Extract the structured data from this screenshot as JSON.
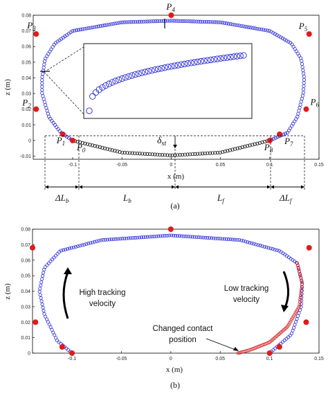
{
  "chart_data": [
    {
      "panel": "a",
      "type": "scatter",
      "caption": "(a)",
      "xlabel": "x (m)",
      "ylabel": "z (m)",
      "xlim": [
        -0.14,
        0.15
      ],
      "ylim": [
        -0.012,
        0.08
      ],
      "xticks": [
        -0.1,
        -0.05,
        0,
        0.05,
        0.1,
        0.15
      ],
      "xtick_labels": [
        "-0.1",
        "-0.05",
        "0",
        "0.05",
        "0.1",
        "0.15"
      ],
      "yticks": [
        -0.01,
        0,
        0.01,
        0.02,
        0.03,
        0.04,
        0.05,
        0.06,
        0.07,
        0.08
      ],
      "ytick_labels": [
        "-0.01",
        "0",
        "0.01",
        "0.02",
        "0.03",
        "0.04",
        "0.05",
        "0.06",
        "0.07",
        "0.08"
      ],
      "grid": false,
      "series": [
        {
          "color": "#2a2ad4",
          "marker": "open-circle",
          "points": [
            [
              -0.1,
              0.0
            ],
            [
              -0.112,
              0.005
            ],
            [
              -0.124,
              0.015
            ],
            [
              -0.131,
              0.03
            ],
            [
              -0.131,
              0.04
            ],
            [
              -0.128,
              0.052
            ],
            [
              -0.118,
              0.062
            ],
            [
              -0.1,
              0.07
            ],
            [
              -0.05,
              0.0755
            ],
            [
              0.0,
              0.0765
            ],
            [
              0.05,
              0.0755
            ],
            [
              0.1,
              0.07
            ],
            [
              0.122,
              0.062
            ],
            [
              0.132,
              0.052
            ],
            [
              0.135,
              0.04
            ],
            [
              0.134,
              0.03
            ],
            [
              0.128,
              0.015
            ],
            [
              0.118,
              0.005
            ],
            [
              0.1,
              0.0
            ]
          ]
        },
        {
          "color": "#111111",
          "marker": "open-circle",
          "points": [
            [
              -0.1,
              0.0
            ],
            [
              -0.05,
              -0.0077
            ],
            [
              0.0,
              -0.0095
            ],
            [
              0.05,
              -0.0077
            ],
            [
              0.1,
              0.0
            ]
          ]
        }
      ],
      "points": [
        {
          "label_main": "P",
          "label_sub": "0",
          "x": -0.1,
          "z": 0.0
        },
        {
          "label_main": "P",
          "label_sub": "1",
          "x": -0.11,
          "z": 0.004
        },
        {
          "label_main": "P",
          "label_sub": "2",
          "x": -0.137,
          "z": 0.02
        },
        {
          "label_main": "P",
          "label_sub": "3",
          "x": -0.137,
          "z": 0.068
        },
        {
          "label_main": "P",
          "label_sub": "4",
          "x": 0.0,
          "z": 0.08
        },
        {
          "label_main": "P",
          "label_sub": "5",
          "x": 0.14,
          "z": 0.068
        },
        {
          "label_main": "P",
          "label_sub": "6",
          "x": 0.137,
          "z": 0.02
        },
        {
          "label_main": "P",
          "label_sub": "7",
          "x": 0.11,
          "z": 0.004
        },
        {
          "label_main": "P",
          "label_sub": "8",
          "x": 0.1,
          "z": 0.0
        }
      ],
      "dimension_labels": [
        {
          "main": "ΔL",
          "sub": "b"
        },
        {
          "main": "L",
          "sub": "b"
        },
        {
          "main": "L",
          "sub": "f"
        },
        {
          "main": "ΔL",
          "sub": "f"
        }
      ],
      "sag_label": {
        "main": "δ",
        "sub": "st"
      }
    },
    {
      "panel": "b",
      "type": "scatter",
      "caption": "(b)",
      "xlabel": "x (m)",
      "ylabel": "z (m)",
      "xlim": [
        -0.14,
        0.15
      ],
      "ylim": [
        0,
        0.08
      ],
      "xticks": [
        -0.1,
        -0.05,
        0,
        0.05,
        0.1,
        0.15
      ],
      "xtick_labels": [
        "-0.1",
        "-0.05",
        "0",
        "0.05",
        "0.1",
        "0.15"
      ],
      "yticks": [
        0,
        0.01,
        0.02,
        0.03,
        0.04,
        0.05,
        0.06,
        0.07,
        0.08
      ],
      "ytick_labels": [
        "0",
        "0.01",
        "0.02",
        "0.03",
        "0.04",
        "0.05",
        "0.06",
        "0.07",
        "0.08"
      ],
      "grid": false,
      "series": [
        {
          "color": "#2a2ad4",
          "marker": "open-circle",
          "points": [
            [
              -0.1,
              0.0
            ],
            [
              -0.115,
              0.008
            ],
            [
              -0.128,
              0.025
            ],
            [
              -0.133,
              0.04
            ],
            [
              -0.128,
              0.055
            ],
            [
              -0.112,
              0.066
            ],
            [
              -0.07,
              0.073
            ],
            [
              0.0,
              0.076
            ],
            [
              0.07,
              0.073
            ],
            [
              0.11,
              0.066
            ],
            [
              0.128,
              0.058
            ],
            [
              0.133,
              0.045
            ],
            [
              0.132,
              0.03
            ],
            [
              0.122,
              0.012
            ],
            [
              0.1,
              0.0
            ]
          ]
        },
        {
          "color": "#d42a2a",
          "marker": "open-circle",
          "points": [
            [
              0.128,
              0.058
            ],
            [
              0.133,
              0.045
            ],
            [
              0.13,
              0.03
            ],
            [
              0.118,
              0.017
            ],
            [
              0.1,
              0.007
            ],
            [
              0.08,
              0.002
            ],
            [
              0.068,
              0.0
            ]
          ]
        }
      ],
      "points": [
        {
          "x": -0.1,
          "z": 0.0
        },
        {
          "x": -0.11,
          "z": 0.004
        },
        {
          "x": -0.137,
          "z": 0.02
        },
        {
          "x": -0.14,
          "z": 0.068
        },
        {
          "x": 0.0,
          "z": 0.08
        },
        {
          "x": 0.14,
          "z": 0.068
        },
        {
          "x": 0.137,
          "z": 0.02
        },
        {
          "x": 0.11,
          "z": 0.004
        },
        {
          "x": 0.1,
          "z": 0.0
        }
      ],
      "annotations": {
        "left_line1": "High tracking",
        "left_line2": "velocity",
        "right_line1": "Low tracking",
        "right_line2": "velocity",
        "changed_line1": "Changed contact",
        "changed_line2": "position"
      }
    }
  ],
  "colors": {
    "blue": "#2a2ad4",
    "red_point": "#e01b1b",
    "red_series": "#d42a2a",
    "black": "#111111"
  }
}
